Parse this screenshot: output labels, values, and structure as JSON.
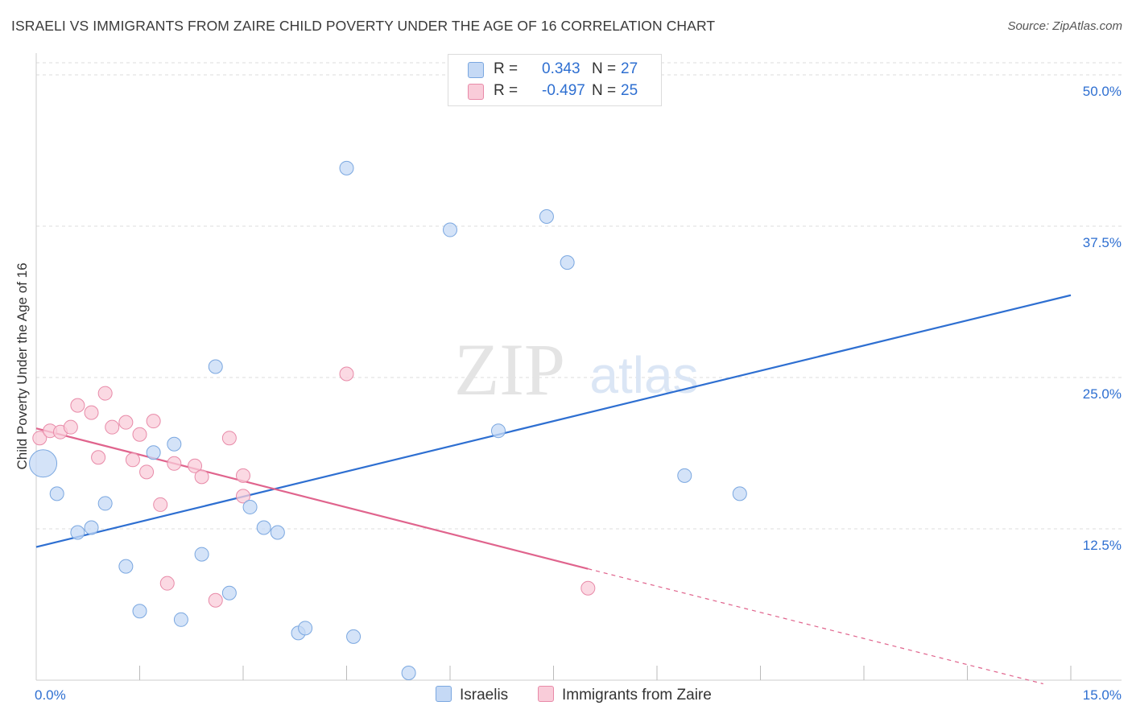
{
  "title": "ISRAELI VS IMMIGRANTS FROM ZAIRE CHILD POVERTY UNDER THE AGE OF 16 CORRELATION CHART",
  "source": "Source: ZipAtlas.com",
  "watermark": {
    "zip": "ZIP",
    "atlas": "atlas"
  },
  "legend_top": {
    "israelis": {
      "r_label": "R =",
      "r_value": "0.343",
      "n_label": "N =",
      "n_value": "27"
    },
    "zaire": {
      "r_label": "R =",
      "r_value": "-0.497",
      "n_label": "N =",
      "n_value": "25"
    }
  },
  "legend_bottom": {
    "israelis": "Israelis",
    "zaire": "Immigrants from Zaire"
  },
  "colors": {
    "blue_fill": "#c5d9f5",
    "blue_stroke": "#7aa7e0",
    "blue_line": "#2e6fd1",
    "pink_fill": "#f9ccd9",
    "pink_stroke": "#e88aa8",
    "pink_line": "#e0648d",
    "grid": "#dddddd",
    "tick_label": "#2e6fd1"
  },
  "chart_data": {
    "type": "scatter",
    "title": "ISRAELI VS IMMIGRANTS FROM ZAIRE CHILD POVERTY UNDER THE AGE OF 16 CORRELATION CHART",
    "xlabel": "",
    "ylabel": "Child Poverty Under the Age of 16",
    "xlim": [
      0,
      15
    ],
    "ylim": [
      0,
      51
    ],
    "x_tick_labels": [
      {
        "value": 0,
        "label": "0.0%"
      },
      {
        "value": 15,
        "label": "15.0%"
      }
    ],
    "y_tick_labels": [
      {
        "value": 12.5,
        "label": "12.5%"
      },
      {
        "value": 25,
        "label": "25.0%"
      },
      {
        "value": 37.5,
        "label": "37.5%"
      },
      {
        "value": 50,
        "label": "50.0%"
      }
    ],
    "series": [
      {
        "name": "Israelis",
        "color": "#7aa7e0",
        "points": [
          {
            "x": 0.1,
            "y": 17.9,
            "big": true
          },
          {
            "x": 0.3,
            "y": 15.4
          },
          {
            "x": 0.6,
            "y": 12.2
          },
          {
            "x": 0.8,
            "y": 12.6
          },
          {
            "x": 1.0,
            "y": 14.6
          },
          {
            "x": 1.3,
            "y": 9.4
          },
          {
            "x": 1.5,
            "y": 5.7
          },
          {
            "x": 1.7,
            "y": 18.8
          },
          {
            "x": 2.0,
            "y": 19.5
          },
          {
            "x": 2.1,
            "y": 5.0
          },
          {
            "x": 2.4,
            "y": 10.4
          },
          {
            "x": 2.6,
            "y": 25.9
          },
          {
            "x": 2.8,
            "y": 7.2
          },
          {
            "x": 3.1,
            "y": 14.3
          },
          {
            "x": 3.3,
            "y": 12.6
          },
          {
            "x": 3.5,
            "y": 12.2
          },
          {
            "x": 3.8,
            "y": 3.9
          },
          {
            "x": 3.9,
            "y": 4.3
          },
          {
            "x": 4.5,
            "y": 42.3
          },
          {
            "x": 4.6,
            "y": 3.6
          },
          {
            "x": 5.4,
            "y": 0.6
          },
          {
            "x": 6.0,
            "y": 37.2
          },
          {
            "x": 6.7,
            "y": 20.6
          },
          {
            "x": 7.4,
            "y": 38.3
          },
          {
            "x": 7.7,
            "y": 34.5
          },
          {
            "x": 9.4,
            "y": 16.9
          },
          {
            "x": 10.2,
            "y": 15.4
          }
        ],
        "trend": {
          "x0": 0,
          "y0": 11.0,
          "x1": 15,
          "y1": 31.8
        }
      },
      {
        "name": "Immigrants from Zaire",
        "color": "#e88aa8",
        "points": [
          {
            "x": 0.05,
            "y": 20.0
          },
          {
            "x": 0.2,
            "y": 20.6
          },
          {
            "x": 0.35,
            "y": 20.5
          },
          {
            "x": 0.5,
            "y": 20.9
          },
          {
            "x": 0.6,
            "y": 22.7
          },
          {
            "x": 0.8,
            "y": 22.1
          },
          {
            "x": 0.9,
            "y": 18.4
          },
          {
            "x": 1.0,
            "y": 23.7
          },
          {
            "x": 1.1,
            "y": 20.9
          },
          {
            "x": 1.3,
            "y": 21.3
          },
          {
            "x": 1.4,
            "y": 18.2
          },
          {
            "x": 1.5,
            "y": 20.3
          },
          {
            "x": 1.6,
            "y": 17.2
          },
          {
            "x": 1.7,
            "y": 21.4
          },
          {
            "x": 1.8,
            "y": 14.5
          },
          {
            "x": 1.9,
            "y": 8.0
          },
          {
            "x": 2.0,
            "y": 17.9
          },
          {
            "x": 2.3,
            "y": 17.7
          },
          {
            "x": 2.4,
            "y": 16.8
          },
          {
            "x": 2.6,
            "y": 6.6
          },
          {
            "x": 2.8,
            "y": 20.0
          },
          {
            "x": 3.0,
            "y": 16.9
          },
          {
            "x": 3.0,
            "y": 15.2
          },
          {
            "x": 4.5,
            "y": 25.3
          },
          {
            "x": 8.0,
            "y": 7.6
          }
        ],
        "trend": {
          "x0": 0,
          "y0": 20.8,
          "x1": 8.0,
          "y1": 9.2,
          "dash_x1": 14.6,
          "dash_y1": -0.3
        }
      }
    ]
  }
}
